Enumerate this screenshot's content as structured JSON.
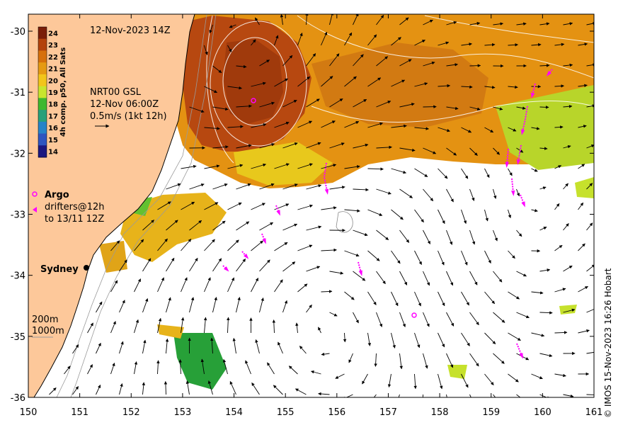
{
  "map": {
    "date_label": "12-Nov-2023 14Z",
    "product_label": [
      "NRT00 GSL",
      "12-Nov 06:00Z",
      "0.5m/s (1kt 12h)"
    ],
    "colorbar": {
      "title": "4h comp. p50, All Sats",
      "ticks": [
        "24",
        "23",
        "22",
        "21",
        "20",
        "19",
        "18",
        "17",
        "16",
        "15",
        "14"
      ],
      "colors": [
        "#7a1e08",
        "#b3420b",
        "#d7700b",
        "#e69a12",
        "#f2c51a",
        "#c8e52d",
        "#3fb82f",
        "#27a07a",
        "#2683c8",
        "#2e55c0",
        "#1b1780"
      ]
    },
    "legend": {
      "argo_label": "Argo",
      "drifters_label": [
        "drifters@12h",
        "to 13/11 12Z"
      ]
    },
    "place_label": "Sydney",
    "isobaths": [
      "200m",
      "1000m"
    ],
    "credit": "© IMOS 15-Nov-2023 16:26 Hobart",
    "x_ticks": [
      "150",
      "151",
      "152",
      "153",
      "154",
      "155",
      "156",
      "157",
      "158",
      "159",
      "160",
      "161"
    ],
    "y_ticks": [
      "-30",
      "-31",
      "-32",
      "-33",
      "-34",
      "-35",
      "-36"
    ],
    "colors": {
      "land": "#fdc89a",
      "sea_missing": "#ffffff",
      "argo": "#ff00ff",
      "drifter": "#ff00ff"
    }
  }
}
